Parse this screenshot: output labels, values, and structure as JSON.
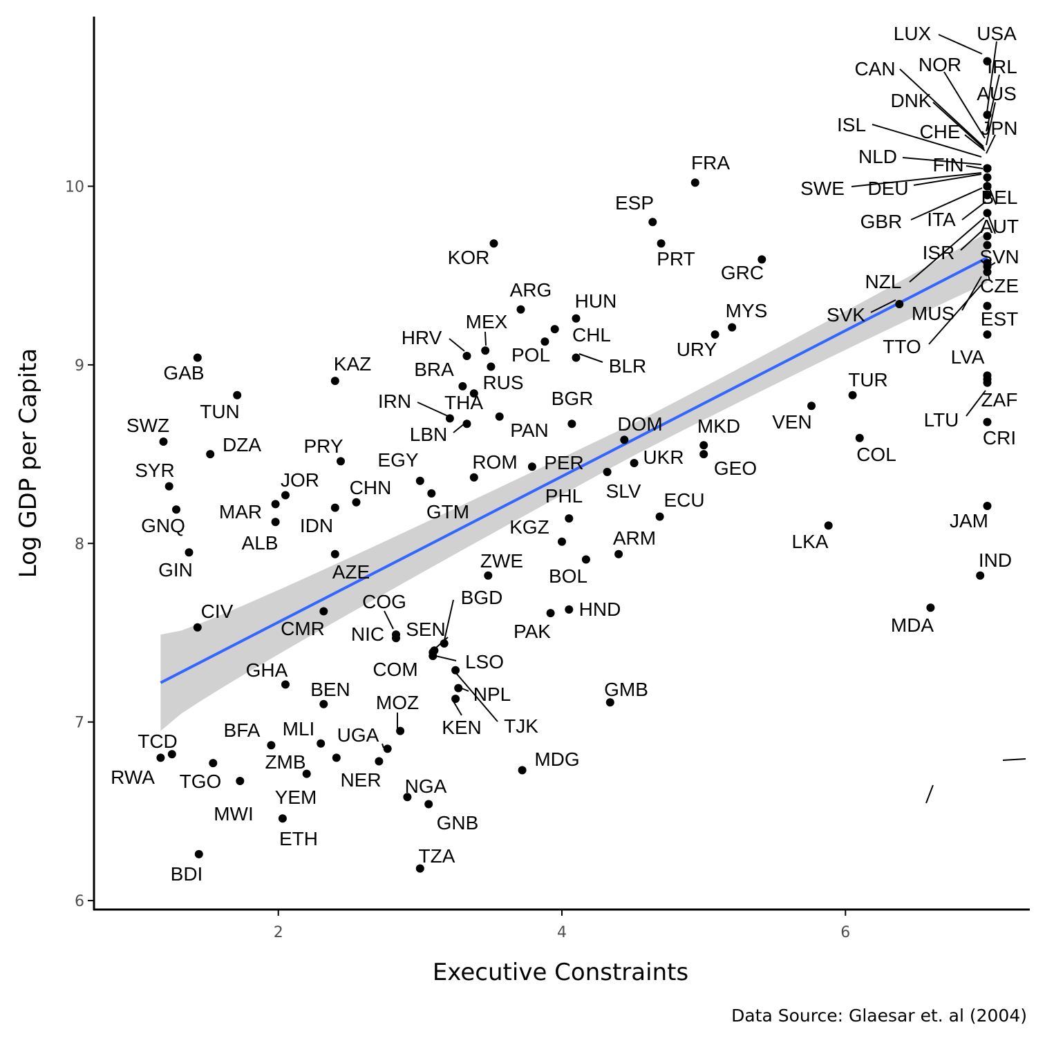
{
  "chart_data": {
    "type": "scatter",
    "xlabel": "Executive Constraints",
    "ylabel": "Log GDP per Capita",
    "caption": "Data Source: Glaesar et. al (2004)",
    "xlim": [
      0.7,
      7.3
    ],
    "ylim": [
      5.95,
      10.95
    ],
    "x_ticks": [
      2,
      4,
      6
    ],
    "y_ticks": [
      6,
      7,
      8,
      9,
      10
    ],
    "grid": false,
    "colors": {
      "points": "#000000",
      "fit_line": "#3366FF",
      "confidence_band": "#cccccc",
      "axis": "#000000",
      "tick_label": "#4d4d4d"
    },
    "fit": {
      "method": "linear",
      "x0": 1.17,
      "y0": 7.22,
      "x1": 7.0,
      "y1": 9.6,
      "band_halfwidth_at_x0": 0.27,
      "band_halfwidth_at_mean": 0.09,
      "band_halfwidth_at_x1": 0.14,
      "band_center_x": 4.5
    },
    "points": [
      {
        "label": "LUX",
        "x": 7.0,
        "y": 10.7
      },
      {
        "label": "USA",
        "x": 7.0,
        "y": 10.1
      },
      {
        "label": "IRL",
        "x": 7.0,
        "y": 10.1
      },
      {
        "label": "CAN",
        "x": 7.0,
        "y": 10.1
      },
      {
        "label": "NOR",
        "x": 7.0,
        "y": 10.1
      },
      {
        "label": "AUS",
        "x": 7.0,
        "y": 10.1
      },
      {
        "label": "DNK",
        "x": 7.0,
        "y": 10.1
      },
      {
        "label": "JPN",
        "x": 7.0,
        "y": 10.1
      },
      {
        "label": "ISL",
        "x": 7.0,
        "y": 10.1
      },
      {
        "label": "CHE",
        "x": 7.0,
        "y": 10.4
      },
      {
        "label": "NLD",
        "x": 7.0,
        "y": 10.05
      },
      {
        "label": "FIN",
        "x": 7.0,
        "y": 10.0
      },
      {
        "label": "SWE",
        "x": 7.0,
        "y": 10.0
      },
      {
        "label": "DEU",
        "x": 7.0,
        "y": 10.0
      },
      {
        "label": "BEL",
        "x": 7.0,
        "y": 10.0
      },
      {
        "label": "GBR",
        "x": 7.0,
        "y": 9.95
      },
      {
        "label": "ITA",
        "x": 7.0,
        "y": 9.85
      },
      {
        "label": "AUT",
        "x": 7.0,
        "y": 10.0
      },
      {
        "label": "ISR",
        "x": 7.0,
        "y": 9.72
      },
      {
        "label": "SVN",
        "x": 7.0,
        "y": 9.55
      },
      {
        "label": "NZL",
        "x": 7.0,
        "y": 9.67
      },
      {
        "label": "CZE",
        "x": 7.0,
        "y": 9.52
      },
      {
        "label": "MUS",
        "x": 7.0,
        "y": 9.33
      },
      {
        "label": "EST",
        "x": 7.0,
        "y": 9.17
      },
      {
        "label": "TTO",
        "x": 7.0,
        "y": 9.57
      },
      {
        "label": "LVA",
        "x": 7.0,
        "y": 8.94
      },
      {
        "label": "ZAF",
        "x": 7.0,
        "y": 8.9
      },
      {
        "label": "LTU",
        "x": 7.0,
        "y": 8.92
      },
      {
        "label": "CRI",
        "x": 7.0,
        "y": 8.68
      },
      {
        "label": "JAM",
        "x": 7.0,
        "y": 8.21
      },
      {
        "label": "IND",
        "x": 6.95,
        "y": 7.82
      },
      {
        "label": "MDA",
        "x": 6.6,
        "y": 7.64
      },
      {
        "label": "SVK",
        "x": 6.38,
        "y": 9.34
      },
      {
        "label": "TUR",
        "x": 6.05,
        "y": 8.83
      },
      {
        "label": "COL",
        "x": 6.1,
        "y": 8.59
      },
      {
        "label": "VEN",
        "x": 5.76,
        "y": 8.77
      },
      {
        "label": "LKA",
        "x": 5.88,
        "y": 8.1
      },
      {
        "label": "FRA",
        "x": 4.94,
        "y": 10.02
      },
      {
        "label": "ESP",
        "x": 4.64,
        "y": 9.8
      },
      {
        "label": "PRT",
        "x": 4.7,
        "y": 9.68
      },
      {
        "label": "GRC",
        "x": 5.41,
        "y": 9.59
      },
      {
        "label": "MYS",
        "x": 5.2,
        "y": 9.21
      },
      {
        "label": "URY",
        "x": 5.08,
        "y": 9.17
      },
      {
        "label": "MKD",
        "x": 5.0,
        "y": 8.55
      },
      {
        "label": "GEO",
        "x": 5.0,
        "y": 8.5
      },
      {
        "label": "UKR",
        "x": 4.51,
        "y": 8.45
      },
      {
        "label": "DOM",
        "x": 4.44,
        "y": 8.58
      },
      {
        "label": "SLV",
        "x": 4.32,
        "y": 8.4
      },
      {
        "label": "ECU",
        "x": 4.69,
        "y": 8.15
      },
      {
        "label": "ARM",
        "x": 4.4,
        "y": 7.94
      },
      {
        "label": "GMB",
        "x": 4.34,
        "y": 7.11
      },
      {
        "label": "HUN",
        "x": 4.1,
        "y": 9.26
      },
      {
        "label": "CHL",
        "x": 3.95,
        "y": 9.2
      },
      {
        "label": "BLR",
        "x": 4.1,
        "y": 9.04
      },
      {
        "label": "POL",
        "x": 3.88,
        "y": 9.13
      },
      {
        "label": "BGR",
        "x": 4.07,
        "y": 8.67
      },
      {
        "label": "PER",
        "x": 3.79,
        "y": 8.43
      },
      {
        "label": "PHL",
        "x": 4.05,
        "y": 8.14
      },
      {
        "label": "KGZ",
        "x": 4.0,
        "y": 8.01
      },
      {
        "label": "BOL",
        "x": 4.17,
        "y": 7.91
      },
      {
        "label": "HND",
        "x": 4.05,
        "y": 7.63
      },
      {
        "label": "PAK",
        "x": 3.92,
        "y": 7.61
      },
      {
        "label": "MDG",
        "x": 3.72,
        "y": 6.73
      },
      {
        "label": "KOR",
        "x": 3.52,
        "y": 9.68
      },
      {
        "label": "ARG",
        "x": 3.71,
        "y": 9.31
      },
      {
        "label": "MEX",
        "x": 3.46,
        "y": 9.08
      },
      {
        "label": "HRV",
        "x": 3.33,
        "y": 9.05
      },
      {
        "label": "RUS",
        "x": 3.5,
        "y": 8.99
      },
      {
        "label": "BRA",
        "x": 3.3,
        "y": 8.88
      },
      {
        "label": "THA",
        "x": 3.38,
        "y": 8.84
      },
      {
        "label": "PAN",
        "x": 3.56,
        "y": 8.71
      },
      {
        "label": "IRN",
        "x": 3.21,
        "y": 8.7
      },
      {
        "label": "LBN",
        "x": 3.33,
        "y": 8.67
      },
      {
        "label": "ROM",
        "x": 3.38,
        "y": 8.37
      },
      {
        "label": "EGY",
        "x": 3.0,
        "y": 8.35
      },
      {
        "label": "GTM",
        "x": 3.08,
        "y": 8.28
      },
      {
        "label": "ZWE",
        "x": 3.48,
        "y": 7.82
      },
      {
        "label": "BGD",
        "x": 3.17,
        "y": 7.44
      },
      {
        "label": "SEN",
        "x": 3.1,
        "y": 7.4
      },
      {
        "label": "COG",
        "x": 2.83,
        "y": 7.49
      },
      {
        "label": "NIC",
        "x": 2.83,
        "y": 7.47
      },
      {
        "label": "COM",
        "x": 3.09,
        "y": 7.37
      },
      {
        "label": "LSO",
        "x": 3.09,
        "y": 7.39
      },
      {
        "label": "NPL",
        "x": 3.27,
        "y": 7.19
      },
      {
        "label": "TJK",
        "x": 3.25,
        "y": 7.29
      },
      {
        "label": "KEN",
        "x": 3.25,
        "y": 7.13
      },
      {
        "label": "MOZ",
        "x": 2.86,
        "y": 6.95
      },
      {
        "label": "UGA",
        "x": 2.77,
        "y": 6.85
      },
      {
        "label": "NER",
        "x": 2.71,
        "y": 6.78
      },
      {
        "label": "NGA",
        "x": 2.91,
        "y": 6.58
      },
      {
        "label": "GNB",
        "x": 3.06,
        "y": 6.54
      },
      {
        "label": "TZA",
        "x": 3.0,
        "y": 6.18
      },
      {
        "label": "KAZ",
        "x": 2.4,
        "y": 8.91
      },
      {
        "label": "PRY",
        "x": 2.44,
        "y": 8.46
      },
      {
        "label": "CHN",
        "x": 2.55,
        "y": 8.23
      },
      {
        "label": "IDN",
        "x": 2.4,
        "y": 8.2
      },
      {
        "label": "AZE",
        "x": 2.4,
        "y": 7.94
      },
      {
        "label": "CMR",
        "x": 2.32,
        "y": 7.62
      },
      {
        "label": "BEN",
        "x": 2.32,
        "y": 7.1
      },
      {
        "label": "MLI",
        "x": 2.3,
        "y": 6.88
      },
      {
        "label": "ZMB",
        "x": 2.41,
        "y": 6.8
      },
      {
        "label": "YEM",
        "x": 2.2,
        "y": 6.71
      },
      {
        "label": "ETH",
        "x": 2.03,
        "y": 6.46
      },
      {
        "label": "JOR",
        "x": 2.05,
        "y": 8.27
      },
      {
        "label": "MAR",
        "x": 1.98,
        "y": 8.22
      },
      {
        "label": "ALB",
        "x": 1.98,
        "y": 8.12
      },
      {
        "label": "GHA",
        "x": 2.05,
        "y": 7.21
      },
      {
        "label": "BFA",
        "x": 1.95,
        "y": 6.87
      },
      {
        "label": "TUN",
        "x": 1.71,
        "y": 8.83
      },
      {
        "label": "DZA",
        "x": 1.52,
        "y": 8.5
      },
      {
        "label": "GAB",
        "x": 1.43,
        "y": 9.04
      },
      {
        "label": "SWZ",
        "x": 1.19,
        "y": 8.57
      },
      {
        "label": "SYR",
        "x": 1.23,
        "y": 8.32
      },
      {
        "label": "GNQ",
        "x": 1.28,
        "y": 8.19
      },
      {
        "label": "GIN",
        "x": 1.37,
        "y": 7.95
      },
      {
        "label": "CIV",
        "x": 1.43,
        "y": 7.53
      },
      {
        "label": "TCD",
        "x": 1.25,
        "y": 6.82
      },
      {
        "label": "RWA",
        "x": 1.17,
        "y": 6.8
      },
      {
        "label": "TGO",
        "x": 1.54,
        "y": 6.77
      },
      {
        "label": "MWI",
        "x": 1.73,
        "y": 6.67
      },
      {
        "label": "BDI",
        "x": 1.44,
        "y": 6.26
      }
    ]
  }
}
